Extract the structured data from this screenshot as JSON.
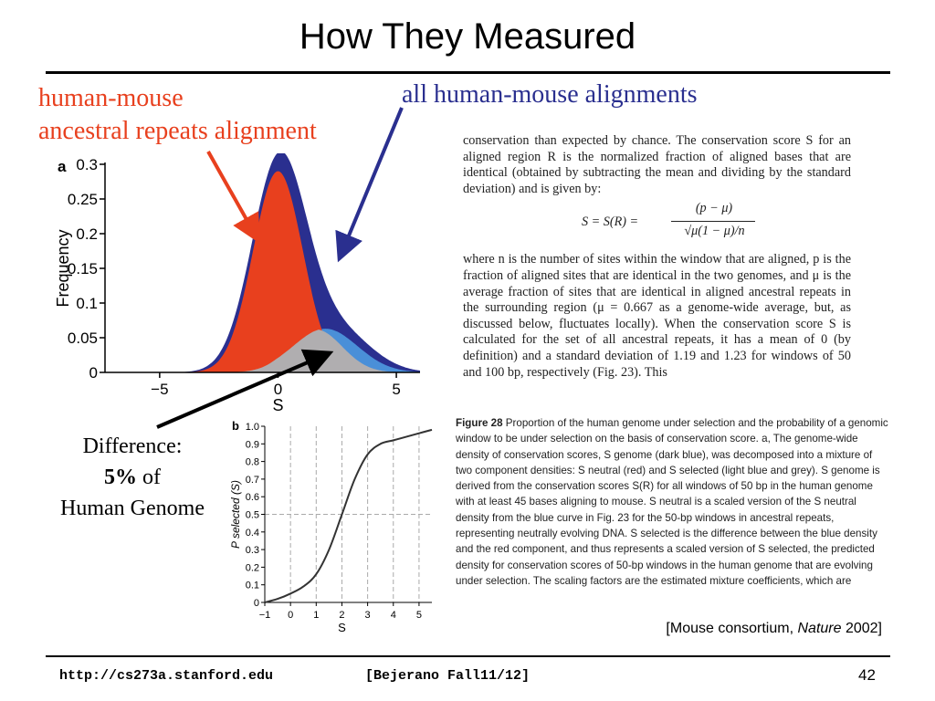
{
  "slide": {
    "title": "How They Measured",
    "page_number": "42",
    "footer_url": "http://cs273a.stanford.edu",
    "footer_course": "[Bejerano Fall11/12]",
    "citation_prefix": "[Mouse consortium, ",
    "citation_journal": "Nature",
    "citation_year": " 2002]"
  },
  "annotations": {
    "red_label_line1": "human-mouse",
    "red_label_line2": "ancestral repeats alignment",
    "blue_label": "all human-mouse alignments",
    "difference_line1": "Difference:",
    "difference_pct": "5%",
    "difference_of": " of",
    "difference_line3": "Human Genome",
    "colors": {
      "red": "#e8401e",
      "blue": "#2a2f8f",
      "black": "#000000"
    }
  },
  "paper_text": {
    "para1": "conservation than expected by chance. The conservation score S for an aligned region R is the normalized fraction of aligned bases that are identical (obtained by subtracting the mean and dividing by the standard deviation) and is given by:",
    "formula_lhs": "S = S(R) =",
    "formula_num": "(p − μ)",
    "formula_den": "√μ(1 − μ)/n",
    "para2": "where n is the number of sites within the window that are aligned, p is the fraction of aligned sites that are identical in the two genomes, and μ is the average fraction of sites that are identical in aligned ancestral repeats in the surrounding region (μ = 0.667 as a genome-wide average, but, as discussed below, fluctuates locally). When the conservation score S is calculated for the set of all ancestral repeats, it has a mean of 0 (by definition) and a standard deviation of 1.19 and 1.23 for windows of 50 and 100 bp, respectively (Fig. 23). This"
  },
  "figure_caption": {
    "label": "Figure 28",
    "text": "Proportion of the human genome under selection and the probability of a genomic window to be under selection on the basis of conservation score. a, The genome-wide density of conservation scores, S genome (dark blue), was decomposed into a mixture of two component densities: S neutral (red) and S selected (light blue and grey). S genome is derived from the conservation scores S(R) for all windows of 50 bp in the human genome with at least 45 bases aligning to mouse. S neutral is a scaled version of the S neutral density from the blue curve in Fig. 23 for the 50-bp windows in ancestral repeats, representing neutrally evolving DNA. S selected is the difference between the blue density and the red component, and thus represents a scaled version of S selected, the predicted density for conservation scores of 50-bp windows in the human genome that are evolving under selection. The scaling factors are the estimated mixture coefficients, which are"
  },
  "chart_data": [
    {
      "type": "area",
      "panel_label": "a",
      "xlabel": "S",
      "ylabel": "Frequency",
      "xlim": [
        -7,
        6
      ],
      "ylim": [
        0,
        0.3
      ],
      "x_ticks": [
        "−5",
        "0",
        "5"
      ],
      "x_tick_values": [
        -5,
        0,
        5
      ],
      "y_ticks": [
        "0",
        "0.05",
        "0.1",
        "0.15",
        "0.2",
        "0.25",
        "0.3"
      ],
      "y_tick_values": [
        0,
        0.05,
        0.1,
        0.15,
        0.2,
        0.25,
        0.3
      ],
      "series": [
        {
          "color": "#2a2f8f",
          "mean": 0.05,
          "peak": 0.305,
          "sd": 1.15,
          "tail_mean": 2.5,
          "tail_peak": 0.06,
          "tail_sd": 1.4
        },
        {
          "color": "#4a8fd8",
          "mean": 2.0,
          "peak": 0.063,
          "sd": 1.35
        },
        {
          "color": "#e8401e",
          "mean": 0.0,
          "peak": 0.29,
          "sd": 1.05
        },
        {
          "color": "#b0aeb0",
          "mean": 1.6,
          "peak": 0.062,
          "sd": 1.1
        }
      ]
    },
    {
      "type": "line",
      "panel_label": "b",
      "xlabel": "S",
      "ylabel": "P selected (S)",
      "xlim": [
        -1,
        5.5
      ],
      "ylim": [
        0,
        1.0
      ],
      "x_ticks": [
        "−1",
        "0",
        "1",
        "2",
        "3",
        "4",
        "5"
      ],
      "x_tick_values": [
        -1,
        0,
        1,
        2,
        3,
        4,
        5
      ],
      "y_ticks": [
        "0",
        "0.1",
        "0.2",
        "0.3",
        "0.4",
        "0.5",
        "0.6",
        "0.7",
        "0.8",
        "0.9",
        "1.0"
      ],
      "y_tick_values": [
        0,
        0.1,
        0.2,
        0.3,
        0.4,
        0.5,
        0.6,
        0.7,
        0.8,
        0.9,
        1.0
      ],
      "x": [
        -1,
        -0.5,
        0,
        0.5,
        1,
        1.5,
        2,
        2.5,
        3,
        3.5,
        4,
        4.5,
        5,
        5.5
      ],
      "y": [
        0.0,
        0.02,
        0.05,
        0.09,
        0.16,
        0.3,
        0.5,
        0.7,
        0.84,
        0.9,
        0.92,
        0.94,
        0.96,
        0.98
      ],
      "dashed_h": 0.5,
      "dashed_v": [
        0,
        1,
        2,
        3,
        4,
        5
      ],
      "grid": true
    }
  ]
}
